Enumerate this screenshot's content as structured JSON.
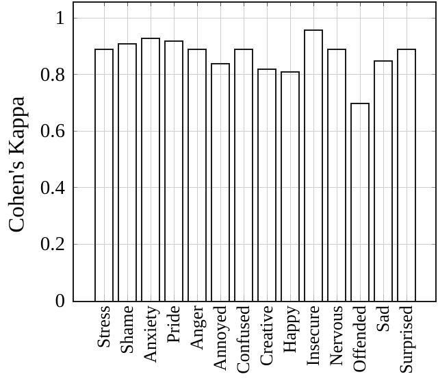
{
  "figure": {
    "ylabel": "Cohen's Kappa"
  },
  "chart_data": {
    "type": "bar",
    "title": "",
    "xlabel": "",
    "ylabel": "Cohen's Kappa",
    "categories": [
      "Stress",
      "Shame",
      "Anxiety",
      "Pride",
      "Anger",
      "Annoyed",
      "Confused",
      "Creative",
      "Happy",
      "Insecure",
      "Nervous",
      "Offended",
      "Sad",
      "Surprised"
    ],
    "values": [
      0.89,
      0.91,
      0.93,
      0.92,
      0.89,
      0.84,
      0.89,
      0.82,
      0.81,
      0.96,
      0.89,
      0.7,
      0.85,
      0.89
    ],
    "ylim": [
      0,
      1.053
    ],
    "yticks": [
      0,
      0.2,
      0.4,
      0.6,
      0.8,
      1
    ],
    "ytick_labels": [
      "0",
      "0.2",
      "0.4",
      "0.6",
      "0.8",
      "1"
    ],
    "grid": true,
    "legend": null,
    "bar_fill": "transparent",
    "bar_border_color": "#1b1b1b",
    "grid_color": "#cdcdcd",
    "frame_color": "#1b1b1b"
  }
}
